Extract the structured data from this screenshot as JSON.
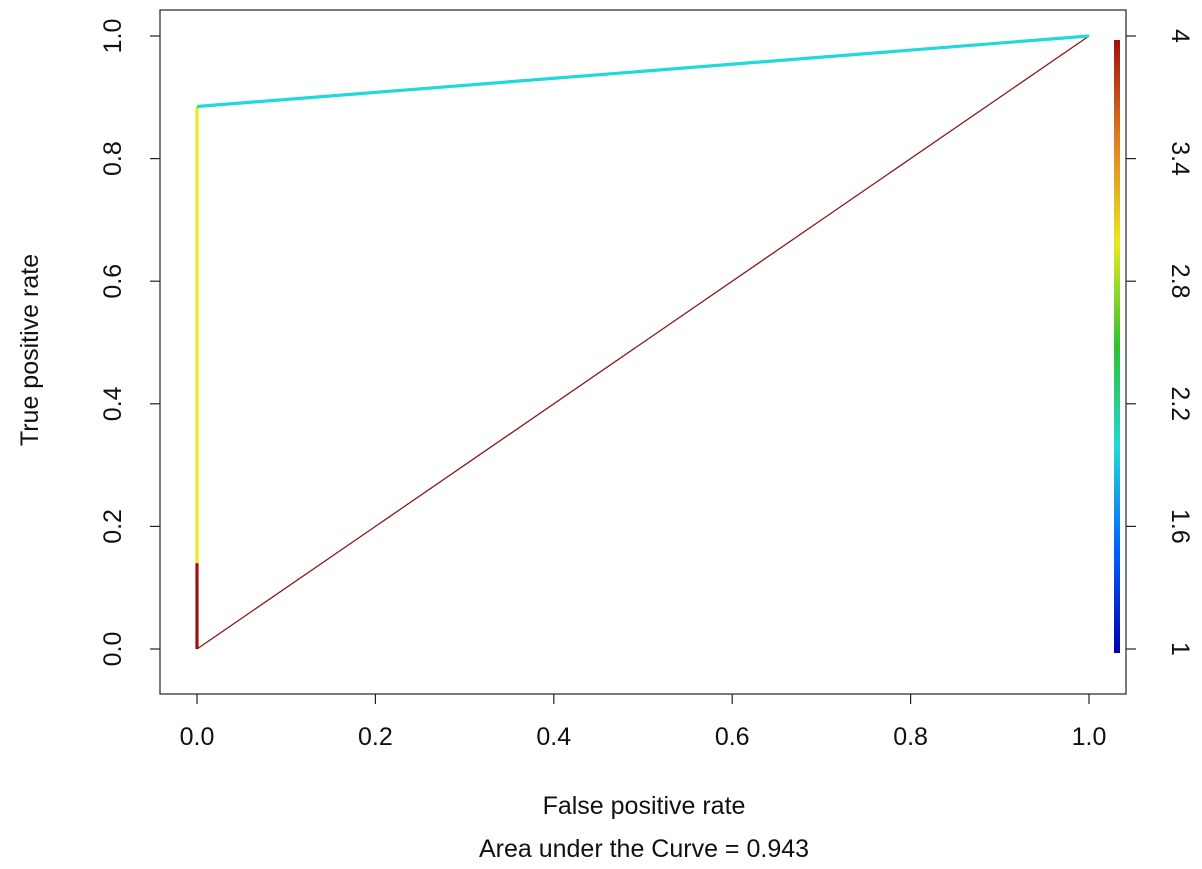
{
  "chart_data": {
    "type": "line",
    "xlabel": "False positive rate",
    "ylabel": "True positive rate",
    "subtitle": "Area under the Curve = 0.943",
    "xlim": [
      0.0,
      1.0
    ],
    "ylim": [
      0.0,
      1.0
    ],
    "x_ticks": [
      "0.0",
      "0.2",
      "0.4",
      "0.6",
      "0.8",
      "1.0"
    ],
    "y_ticks": [
      "0.0",
      "0.2",
      "0.4",
      "0.6",
      "0.8",
      "1.0"
    ],
    "grid": false,
    "series": [
      {
        "points": [
          {
            "x": 0.0,
            "y": 0.0,
            "cutoff": 4.0
          },
          {
            "x": 0.0,
            "y": 0.14,
            "cutoff": 3.0
          },
          {
            "x": 0.0,
            "y": 0.885,
            "cutoff": 2.0
          },
          {
            "x": 1.0,
            "y": 1.0,
            "cutoff": 1.0
          }
        ]
      },
      {
        "points": [
          {
            "x": 0.0,
            "y": 0.0
          },
          {
            "x": 1.0,
            "y": 1.0
          }
        ],
        "color": "#8b1a1a"
      }
    ],
    "colorbar": {
      "ticks": [
        "1",
        "1.6",
        "2.2",
        "2.8",
        "3.4",
        "4"
      ],
      "range": [
        1,
        4
      ],
      "colors": [
        "#0000b0",
        "#0060ff",
        "#22d8d8",
        "#30c030",
        "#e8e820",
        "#e08020",
        "#a01010"
      ]
    }
  }
}
